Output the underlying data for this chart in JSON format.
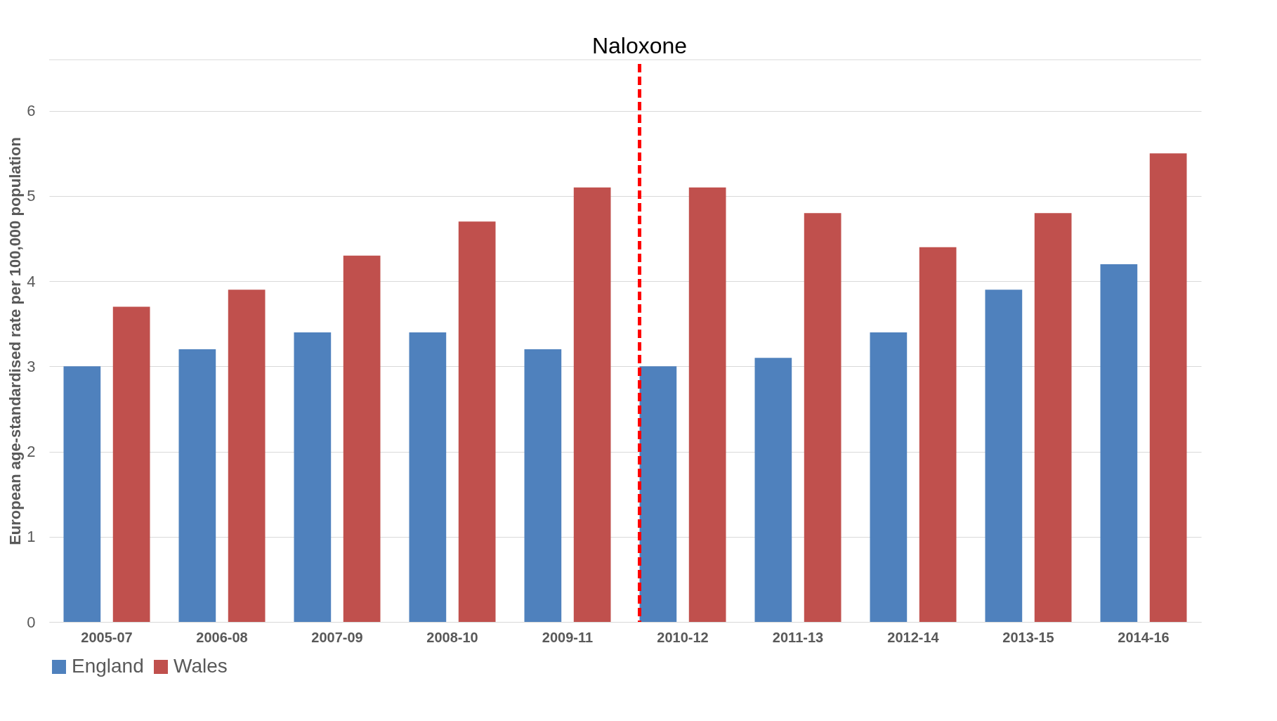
{
  "chart_data": {
    "type": "bar",
    "ylabel": "European age-standardised rate per 100,000 population",
    "categories": [
      "2005-07",
      "2006-08",
      "2007-09",
      "2008-10",
      "2009-11",
      "2010-12",
      "2011-13",
      "2012-14",
      "2013-15",
      "2014-16"
    ],
    "series": [
      {
        "name": "England",
        "color": "#4f81bd",
        "values": [
          3.0,
          3.2,
          3.4,
          3.4,
          3.2,
          3.0,
          3.1,
          3.4,
          3.9,
          4.2
        ]
      },
      {
        "name": "Wales",
        "color": "#c0504d",
        "values": [
          3.7,
          3.9,
          4.3,
          4.7,
          5.1,
          5.1,
          4.8,
          4.4,
          4.8,
          5.5
        ]
      }
    ],
    "ylim": [
      0,
      6.6
    ],
    "yticks": [
      0,
      1,
      2,
      3,
      4,
      5,
      6
    ],
    "ref_lines": [
      {
        "axis": "x",
        "value": "2010-12",
        "label": "Naloxone",
        "color": "#ff0000",
        "line_style": "dashed"
      }
    ],
    "grid": "y",
    "legend": "bottom"
  }
}
